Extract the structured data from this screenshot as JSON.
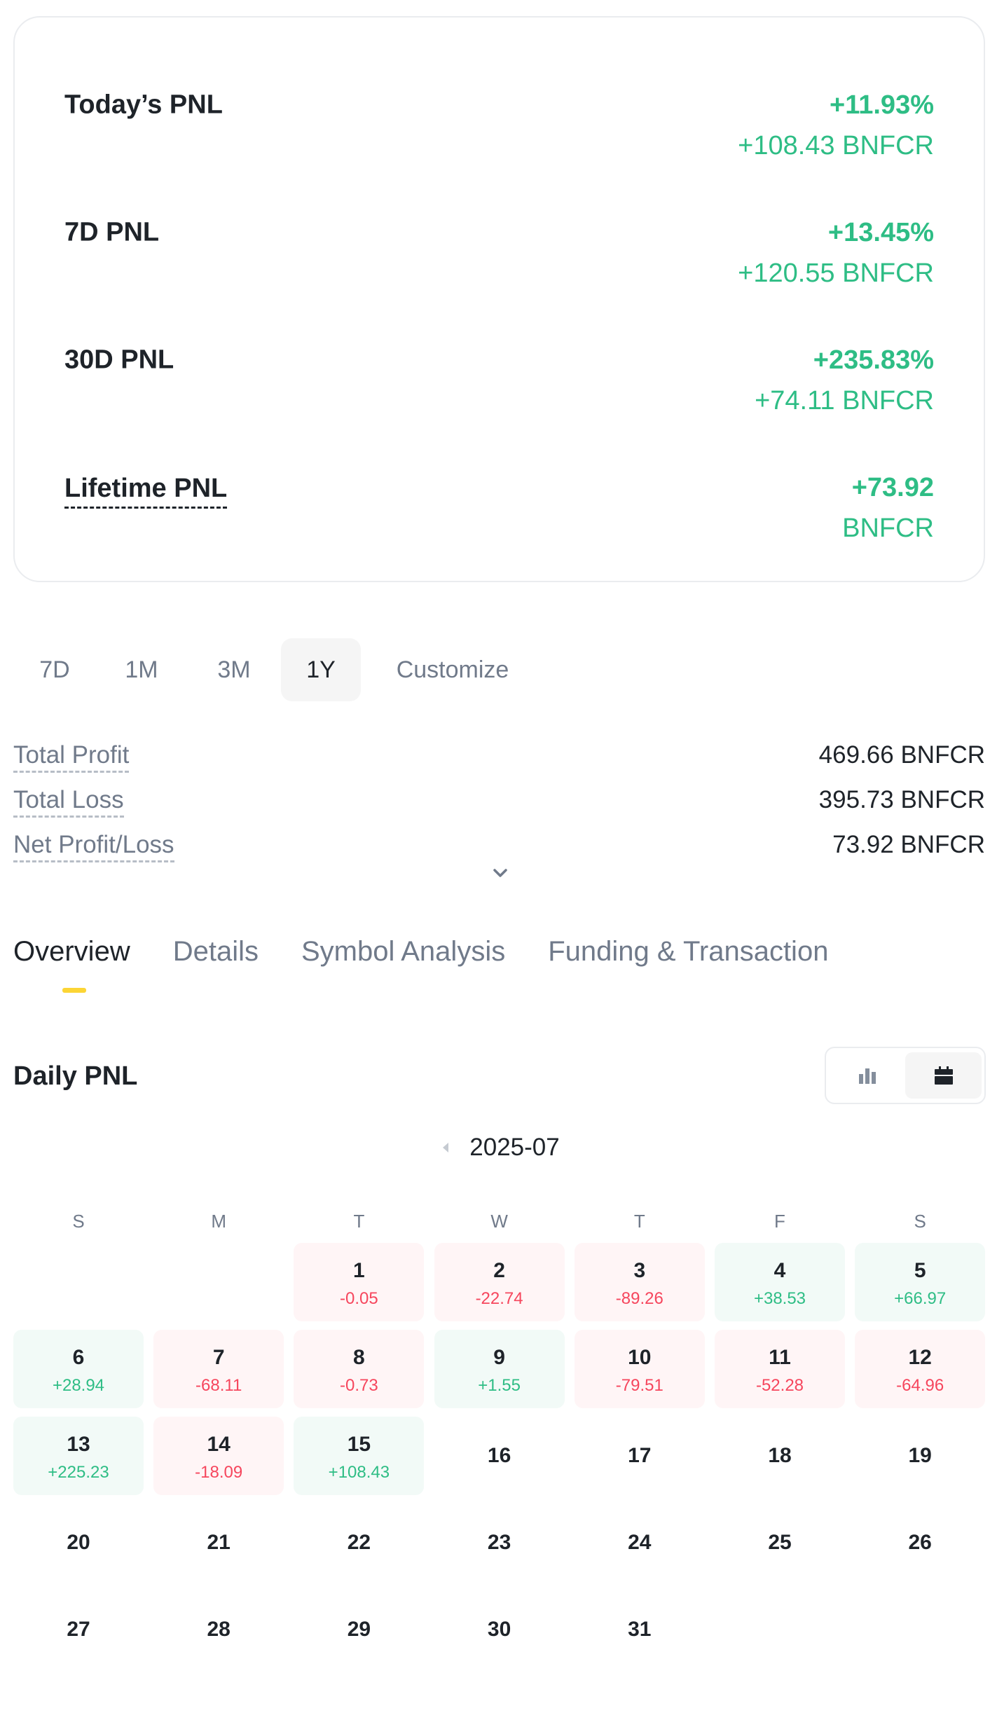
{
  "summary": {
    "today": {
      "label": "Today’s PNL",
      "percent": "+11.93%",
      "amount": "+108.43 BNFCR"
    },
    "seven_day": {
      "label": "7D PNL",
      "percent": "+13.45%",
      "amount": "+120.55 BNFCR"
    },
    "thirty_day": {
      "label": "30D PNL",
      "percent": "+235.83%",
      "amount": "+74.11 BNFCR"
    },
    "lifetime": {
      "label": "Lifetime PNL",
      "value": "+73.92",
      "unit": "BNFCR"
    }
  },
  "period_tabs": [
    "7D",
    "1M",
    "3M",
    "1Y",
    "Customize"
  ],
  "period_selected": "1Y",
  "totals": [
    {
      "label": "Total Profit",
      "value": "469.66 BNFCR"
    },
    {
      "label": "Total Loss",
      "value": "395.73 BNFCR"
    },
    {
      "label": "Net Profit/Loss",
      "value": "73.92 BNFCR"
    }
  ],
  "section_tabs": [
    "Overview",
    "Details",
    "Symbol Analysis",
    "Funding & Transaction"
  ],
  "section_selected": "Overview",
  "daily": {
    "title": "Daily PNL",
    "month": "2025-07",
    "weekdays": [
      "S",
      "M",
      "T",
      "W",
      "T",
      "F",
      "S"
    ],
    "first_weekday_index": 2,
    "days_in_month": 31,
    "pnl": {
      "1": "-0.05",
      "2": "-22.74",
      "3": "-89.26",
      "4": "+38.53",
      "5": "+66.97",
      "6": "+28.94",
      "7": "-68.11",
      "8": "-0.73",
      "9": "+1.55",
      "10": "-79.51",
      "11": "-52.28",
      "12": "-64.96",
      "13": "+225.23",
      "14": "-18.09",
      "15": "+108.43"
    }
  },
  "icons": {
    "bar_chart_view": "bar-chart-icon",
    "calendar_view": "calendar-icon",
    "expand": "chevron-down-icon",
    "prev_month": "caret-left-icon"
  },
  "colors": {
    "positive": "#2ebd85",
    "negative": "#f6465d",
    "accent": "#fcd535",
    "text": "#1e2329",
    "muted": "#707a8a"
  }
}
